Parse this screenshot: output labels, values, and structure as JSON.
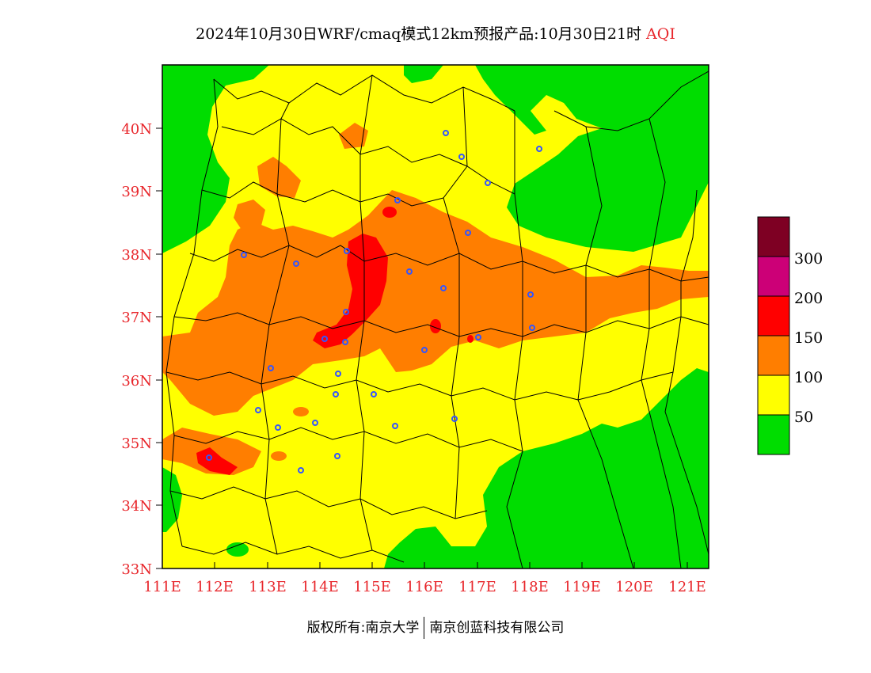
{
  "title": {
    "main": "2024年10月30日WRF/cmaq模式12km预报产品:10月30日21时",
    "variable": "AQI"
  },
  "footer": {
    "left": "版权所有:南京大学",
    "right": "南京创蓝科技有限公司"
  },
  "axes": {
    "lon_ticks": [
      "111E",
      "112E",
      "113E",
      "114E",
      "115E",
      "116E",
      "117E",
      "118E",
      "119E",
      "120E",
      "121E"
    ],
    "lat_ticks": [
      "33N",
      "34N",
      "35N",
      "36N",
      "37N",
      "38N",
      "39N",
      "40N"
    ]
  },
  "legend": {
    "labels": [
      "50",
      "100",
      "150",
      "200",
      "300"
    ],
    "colors": [
      "#00dd00",
      "#ffff00",
      "#ff7e00",
      "#ff0000",
      "#cc0077",
      "#7e0023"
    ]
  },
  "map": {
    "colors": {
      "good": "#00dd00",
      "moderate": "#ffff00",
      "usg": "#ff7e00",
      "unhealthy": "#ff0000",
      "station": "#3355ff",
      "border": "#000000"
    }
  }
}
